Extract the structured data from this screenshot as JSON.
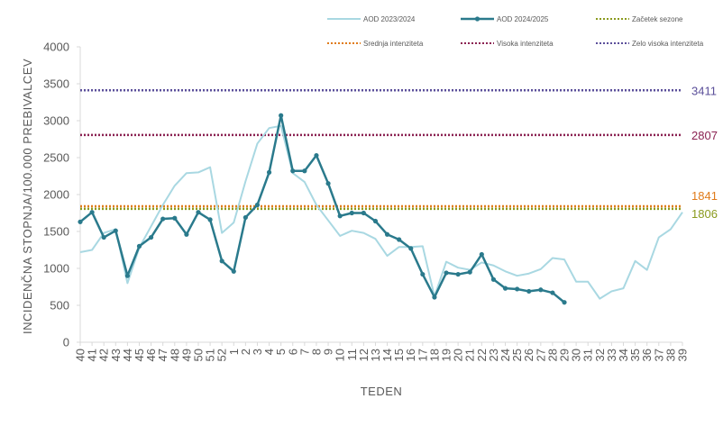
{
  "chart_data": {
    "type": "line",
    "xlabel": "TEDEN",
    "ylabel": "INCIDENČNA  STOPNJA/100.000  PREBIVALCEV",
    "ylim": [
      0,
      4000
    ],
    "yticks": [
      0,
      500,
      1000,
      1500,
      2000,
      2500,
      3000,
      3500,
      4000
    ],
    "categories": [
      "40",
      "41",
      "42",
      "43",
      "44",
      "45",
      "46",
      "47",
      "48",
      "49",
      "50",
      "51",
      "52",
      "1",
      "2",
      "3",
      "4",
      "5",
      "6",
      "7",
      "8",
      "9",
      "10",
      "11",
      "12",
      "13",
      "14",
      "15",
      "16",
      "17",
      "18",
      "19",
      "20",
      "21",
      "22",
      "23",
      "24",
      "25",
      "26",
      "27",
      "28",
      "29",
      "30",
      "31",
      "32",
      "33",
      "34",
      "35",
      "36",
      "37",
      "38",
      "39"
    ],
    "legend_position": "top",
    "series": [
      {
        "name": "AOD 2023/2024",
        "color": "#a9d8e2",
        "markers": false,
        "values": [
          1220,
          1250,
          1480,
          1530,
          800,
          1280,
          1570,
          1860,
          2120,
          2290,
          2300,
          2370,
          1480,
          1620,
          2180,
          2690,
          2900,
          2930,
          2290,
          2170,
          1860,
          1650,
          1440,
          1510,
          1480,
          1400,
          1170,
          1290,
          1290,
          1300,
          620,
          1090,
          1010,
          980,
          1080,
          1040,
          960,
          900,
          930,
          990,
          1140,
          1120,
          820,
          820,
          590,
          690,
          730,
          1100,
          980,
          1420,
          1530,
          1760
        ]
      },
      {
        "name": "AOD 2024/2025",
        "color": "#2a7a8c",
        "markers": true,
        "values": [
          1630,
          1760,
          1420,
          1510,
          900,
          1300,
          1420,
          1670,
          1680,
          1460,
          1760,
          1660,
          1100,
          960,
          1690,
          1860,
          2300,
          3070,
          2320,
          2320,
          2530,
          2150,
          1710,
          1750,
          1750,
          1640,
          1460,
          1390,
          1270,
          920,
          610,
          940,
          920,
          950,
          1190,
          850,
          730,
          720,
          690,
          710,
          670,
          540,
          null,
          null,
          null,
          null,
          null,
          null,
          null,
          null,
          null,
          null
        ]
      }
    ],
    "reference_lines": [
      {
        "name": "Začetek sezone",
        "value": 1806,
        "label": "1806",
        "color": "#8a9a1e"
      },
      {
        "name": "Srednja intenziteta",
        "value": 1841,
        "label": "1841",
        "color": "#e07b1a"
      },
      {
        "name": "Visoka intenziteta",
        "value": 2807,
        "label": "2807",
        "color": "#8b2252"
      },
      {
        "name": "Zelo visoka intenziteta",
        "value": 3411,
        "label": "3411",
        "color": "#5b4f9a"
      }
    ],
    "legend": [
      {
        "label": "AOD 2023/2024",
        "kind": "line",
        "color": "#a9d8e2"
      },
      {
        "label": "AOD 2024/2025",
        "kind": "line-marker",
        "color": "#2a7a8c"
      },
      {
        "label": "Začetek sezone",
        "kind": "dotted",
        "color": "#8a9a1e"
      },
      {
        "label": "Srednja intenziteta",
        "kind": "dotted",
        "color": "#e07b1a"
      },
      {
        "label": "Visoka intenziteta",
        "kind": "dotted",
        "color": "#8b2252"
      },
      {
        "label": "Zelo visoka intenziteta",
        "kind": "dotted",
        "color": "#5b4f9a"
      }
    ]
  }
}
